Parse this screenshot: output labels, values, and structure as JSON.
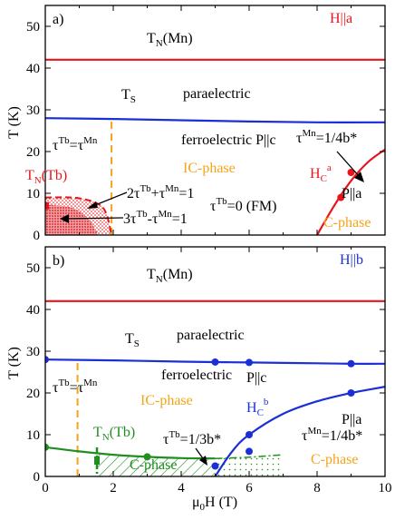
{
  "chart_data": [
    {
      "type": "line",
      "panel_label": "a)",
      "field_direction_label": "H||a",
      "ylabel": "T (K)",
      "xlim": [
        0,
        10
      ],
      "ylim": [
        0,
        55
      ],
      "yticks": [
        0,
        10,
        20,
        30,
        40,
        50
      ],
      "annotations": {
        "tn_mn": "T",
        "tn_mn_sub": "N",
        "tn_mn_rest": "(Mn)",
        "ts": "T",
        "ts_sub": "S",
        "paraelectric": "paraelectric",
        "ferroelectric": "ferroelectric  P||c",
        "tau_eq": "τ",
        "tau_eq_sup1": "Tb",
        "tau_eq_mid": "=τ",
        "tau_eq_sup2": "Mn",
        "ic_phase": "IC-phase",
        "tn_tb": "T",
        "tn_tb_sub": "N",
        "tn_tb_rest": "(Tb)",
        "rel1_pre": "2τ",
        "rel1_sup1": "Tb",
        "rel1_mid": "+τ",
        "rel1_sup2": "Mn",
        "rel1_post": "=1",
        "rel2_pre": "3τ",
        "rel2_sup1": "Tb",
        "rel2_mid": "-τ",
        "rel2_sup2": "Mn",
        "rel2_post": "=1",
        "fm_pre": "τ",
        "fm_sup": "Tb",
        "fm_post": "=0 (FM)",
        "tau_mn_pre": "τ",
        "tau_mn_sup": "Mn",
        "tau_mn_post": "=1/4b*",
        "hc_pre": "H",
        "hc_sub": "C",
        "hc_sup": "a",
        "p_phase": "P||a",
        "c_phase": "C-phase"
      },
      "series": [
        {
          "role": "TN(Mn)",
          "color": "#e8141b",
          "x": [
            0,
            10
          ],
          "y": [
            42,
            42
          ]
        },
        {
          "role": "TS",
          "color": "#1a2fd6",
          "x": [
            0,
            2,
            4,
            6,
            8,
            10
          ],
          "y": [
            28,
            27.8,
            27.5,
            27.2,
            27,
            27
          ]
        },
        {
          "role": "TN(Tb)",
          "color": "#e8141b",
          "style": "dashed",
          "x": [
            0,
            1,
            1.7,
            1.95
          ],
          "y": [
            9,
            8.8,
            6.5,
            0
          ]
        },
        {
          "role": "HC_a",
          "color": "#e8141b",
          "x": [
            8,
            8.5,
            9,
            9.5,
            10
          ],
          "y": [
            0,
            7,
            13,
            17.5,
            20.5
          ]
        },
        {
          "role": "IC_boundary",
          "color": "#f5a31a",
          "style": "dashed",
          "x": [
            1.95,
            1.95
          ],
          "y": [
            0,
            27.8
          ]
        }
      ],
      "points": [
        {
          "x": 0,
          "y": 7,
          "color": "#e8141b",
          "marker": "square"
        },
        {
          "x": 8.7,
          "y": 9,
          "color": "#e8141b",
          "marker": "circle"
        },
        {
          "x": 9,
          "y": 15,
          "color": "#e8141b",
          "marker": "circle"
        }
      ]
    },
    {
      "type": "line",
      "panel_label": "b)",
      "field_direction_label": "H||b",
      "ylabel": "T (K)",
      "xlabel": "μ",
      "xlabel_sub": "0",
      "xlabel_rest": "H (T)",
      "xlim": [
        0,
        10
      ],
      "ylim": [
        0,
        55
      ],
      "xticks": [
        0,
        2,
        4,
        6,
        8,
        10
      ],
      "yticks": [
        0,
        10,
        20,
        30,
        40,
        50
      ],
      "annotations": {
        "tn_mn": "T",
        "tn_mn_sub": "N",
        "tn_mn_rest": "(Mn)",
        "ts": "T",
        "ts_sub": "S",
        "paraelectric": "paraelectric",
        "ferroelectric": "ferroelectric",
        "pc": "P||c",
        "tau_eq": "τ",
        "tau_eq_sup1": "Tb",
        "tau_eq_mid": "=τ",
        "tau_eq_sup2": "Mn",
        "ic_phase": "IC-phase",
        "tn_tb": "T",
        "tn_tb_sub": "N",
        "tn_tb_rest": "(Tb)",
        "tau_tb_pre": "τ",
        "tau_tb_sup": "Tb",
        "tau_tb_post": "=1/3b*",
        "c_phase_green": "C-phase",
        "hc_pre": "H",
        "hc_sub": "C",
        "hc_sup": "b",
        "p_phase": "P||a",
        "tau_mn_pre": "τ",
        "tau_mn_sup": "Mn",
        "tau_mn_post": "=1/4b*",
        "c_phase": "C-phase"
      },
      "series": [
        {
          "role": "TN(Mn)",
          "color": "#e8141b",
          "x": [
            0,
            10
          ],
          "y": [
            42,
            42
          ]
        },
        {
          "role": "TS",
          "color": "#1a2fd6",
          "x": [
            0,
            2,
            4,
            5,
            6,
            8,
            9,
            10
          ],
          "y": [
            28,
            27.8,
            27.5,
            27.4,
            27.3,
            27.1,
            27,
            27
          ]
        },
        {
          "role": "TN(Tb)",
          "color": "#1f8f1f",
          "x": [
            0,
            1,
            2,
            3,
            4,
            5
          ],
          "y": [
            7,
            6,
            5.2,
            4.7,
            4.4,
            4.3
          ]
        },
        {
          "role": "HC_b",
          "color": "#1a2fd6",
          "x": [
            5,
            5.5,
            6,
            7,
            8,
            9,
            10
          ],
          "y": [
            0,
            6,
            10,
            15,
            18,
            20,
            21.5
          ]
        },
        {
          "role": "C_boundary_dashdot",
          "color": "#1f8f1f",
          "style": "dashdot",
          "x": [
            5,
            6,
            7
          ],
          "y": [
            4.3,
            4.6,
            5.2
          ]
        },
        {
          "role": "IC_boundary",
          "color": "#f5a31a",
          "style": "dashed",
          "x": [
            0.95,
            0.95
          ],
          "y": [
            0,
            27.9
          ]
        }
      ],
      "points": [
        {
          "x": 0,
          "y": 28,
          "color": "#1a2fd6",
          "marker": "circle"
        },
        {
          "x": 5,
          "y": 27.4,
          "color": "#1a2fd6",
          "marker": "circle"
        },
        {
          "x": 6,
          "y": 27.3,
          "color": "#1a2fd6",
          "marker": "circle"
        },
        {
          "x": 9,
          "y": 27,
          "color": "#1a2fd6",
          "marker": "circle"
        },
        {
          "x": 9,
          "y": 20,
          "color": "#1a2fd6",
          "marker": "circle"
        },
        {
          "x": 6,
          "y": 10,
          "color": "#1a2fd6",
          "marker": "circle"
        },
        {
          "x": 6,
          "y": 6,
          "color": "#1a2fd6",
          "marker": "circle"
        },
        {
          "x": 5,
          "y": 2.5,
          "color": "#1a2fd6",
          "marker": "circle"
        },
        {
          "x": 0,
          "y": 7,
          "color": "#1f8f1f",
          "marker": "circle"
        },
        {
          "x": 3,
          "y": 4.7,
          "color": "#1f8f1f",
          "marker": "circle"
        }
      ]
    }
  ]
}
